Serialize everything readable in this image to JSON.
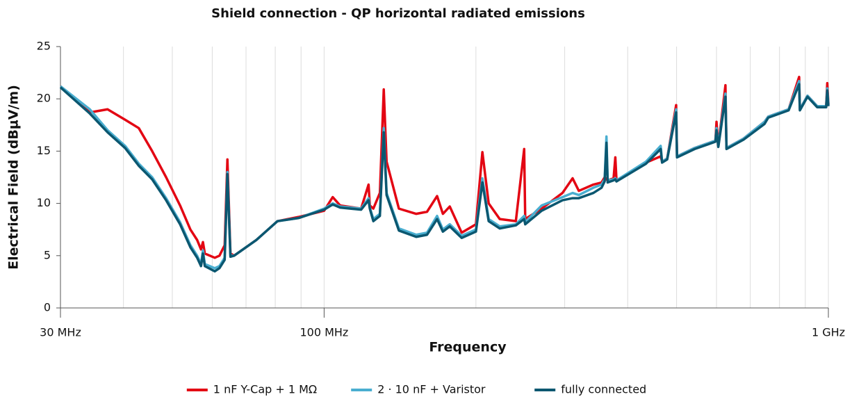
{
  "chart_data": {
    "type": "line",
    "title": "Shield connection - QP horizontal radiated emissions",
    "x_label": "Frequency",
    "y_label": "Electrical Field (dBµV/m)",
    "xscale": "log",
    "xlim": [
      30,
      1000
    ],
    "xticks": [
      {
        "value": 30,
        "label": "30 MHz"
      },
      {
        "value": 100,
        "label": "100 MHz"
      },
      {
        "value": 1000,
        "label": "1 GHz"
      }
    ],
    "xminorticks": [
      40,
      50,
      60,
      70,
      80,
      90,
      200,
      300,
      400,
      500,
      600,
      700,
      800,
      900
    ],
    "ylim": [
      0,
      25
    ],
    "yticks": [
      0,
      5,
      10,
      15,
      20,
      25
    ],
    "grid": "x",
    "legend": "bottom",
    "x": [
      30,
      34.3,
      37.2,
      40.3,
      42.9,
      45.6,
      48.6,
      51.8,
      54.3,
      56,
      57,
      57.5,
      58,
      60.7,
      62,
      63.5,
      64.3,
      65.2,
      66.3,
      73.4,
      80.8,
      89,
      100,
      104,
      107.6,
      118.4,
      122.5,
      123.2,
      125.2,
      129,
      131.3,
      133,
      140.7,
      152.3,
      160,
      167.5,
      172,
      177.5,
      187.4,
      200,
      206,
      212,
      223,
      240,
      249.3,
      250.5,
      270,
      297,
      311,
      320,
      342,
      355,
      360,
      363,
      365,
      375,
      378,
      380,
      435,
      465,
      468,
      479,
      499,
      501,
      543,
      597,
      600,
      605,
      625,
      628,
      679,
      747,
      760,
      834,
      875,
      878,
      909,
      950,
      990,
      995,
      1000
    ],
    "series": [
      {
        "name": "1 nF Y-Cap + 1 MΩ",
        "color": "#e30613",
        "values": [
          21.2,
          18.7,
          19.0,
          18.0,
          17.2,
          15.0,
          12.5,
          9.8,
          7.5,
          6.5,
          5.6,
          6.3,
          5.2,
          4.8,
          5.0,
          6.0,
          14.2,
          5.2,
          5.0,
          6.5,
          8.3,
          8.7,
          9.3,
          10.6,
          9.8,
          9.5,
          11.8,
          9.8,
          9.5,
          11.0,
          20.9,
          14.0,
          9.5,
          9.0,
          9.2,
          10.7,
          9.0,
          9.7,
          7.2,
          8.0,
          14.9,
          10.0,
          8.5,
          8.3,
          15.2,
          8.5,
          9.5,
          11.0,
          12.4,
          11.2,
          11.8,
          12.0,
          12.5,
          12.3,
          12.2,
          12.4,
          14.4,
          12.2,
          13.9,
          14.5,
          14.0,
          14.3,
          19.4,
          14.5,
          15.3,
          16.0,
          17.8,
          15.5,
          21.3,
          15.3,
          16.2,
          17.8,
          18.3,
          19.0,
          22.1,
          19.0,
          20.3,
          19.3,
          19.3,
          21.5,
          19.5
        ]
      },
      {
        "name": "2 · 10 nF + Varistor",
        "color": "#4aaed0",
        "values": [
          21.2,
          19.0,
          17.0,
          15.5,
          13.8,
          12.5,
          10.5,
          8.2,
          6.0,
          5.0,
          4.2,
          5.5,
          4.2,
          3.8,
          4.0,
          4.8,
          13.0,
          5.0,
          5.0,
          6.5,
          8.3,
          8.6,
          9.5,
          10.0,
          9.7,
          9.5,
          10.5,
          9.6,
          8.5,
          9.0,
          17.2,
          11.0,
          7.6,
          7.0,
          7.2,
          8.8,
          7.5,
          8.0,
          6.9,
          7.5,
          12.4,
          8.5,
          7.8,
          8.0,
          8.8,
          8.2,
          9.8,
          10.6,
          11.0,
          10.8,
          11.5,
          11.8,
          12.3,
          16.4,
          12.2,
          12.3,
          12.4,
          12.2,
          14.0,
          15.5,
          14.0,
          14.3,
          19.0,
          14.5,
          15.3,
          16.0,
          17.2,
          15.5,
          20.5,
          15.3,
          16.2,
          17.8,
          18.3,
          19.0,
          21.7,
          19.0,
          20.3,
          19.3,
          19.3,
          21.0,
          19.4
        ]
      },
      {
        "name": "fully connected",
        "color": "#0b5770",
        "values": [
          21.1,
          18.6,
          16.8,
          15.3,
          13.6,
          12.3,
          10.3,
          8.0,
          5.8,
          4.8,
          4.0,
          5.2,
          4.0,
          3.5,
          3.8,
          4.6,
          12.8,
          4.9,
          5.0,
          6.5,
          8.3,
          8.6,
          9.4,
          9.9,
          9.6,
          9.4,
          10.3,
          9.5,
          8.3,
          8.8,
          16.8,
          10.8,
          7.4,
          6.8,
          7.0,
          8.5,
          7.3,
          7.8,
          6.7,
          7.3,
          12.0,
          8.3,
          7.6,
          7.9,
          8.5,
          8.0,
          9.3,
          10.3,
          10.5,
          10.5,
          11.0,
          11.5,
          12.1,
          15.8,
          12.0,
          12.2,
          12.3,
          12.1,
          13.8,
          15.2,
          13.9,
          14.2,
          18.7,
          14.4,
          15.2,
          15.9,
          17.0,
          15.4,
          20.2,
          15.2,
          16.1,
          17.6,
          18.2,
          18.9,
          21.4,
          18.9,
          20.2,
          19.2,
          19.2,
          20.8,
          19.3
        ]
      }
    ]
  }
}
